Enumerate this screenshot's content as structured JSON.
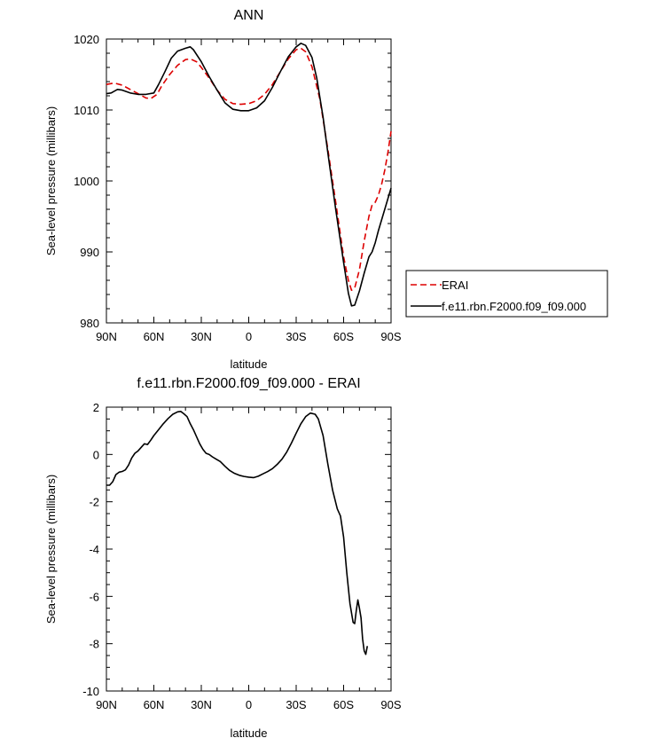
{
  "chart_data": [
    {
      "type": "line",
      "title": "ANN",
      "xlabel": "latitude",
      "ylabel": "Sea-level pressure (millibars)",
      "xlim": [
        90,
        -90
      ],
      "ylim": [
        980,
        1020
      ],
      "xticks": [
        90,
        60,
        30,
        0,
        -30,
        -60,
        -90
      ],
      "xticklabels": [
        "90N",
        "60N",
        "30N",
        "0",
        "30S",
        "60S",
        "90S"
      ],
      "yticks": [
        980,
        990,
        1000,
        1010,
        1020
      ],
      "yticklabels": [
        "980",
        "990",
        "1000",
        "1010",
        "1020"
      ],
      "legend_position": "right",
      "series": [
        {
          "name": "ERAI",
          "color": "#dd0000",
          "dashed": true,
          "points": [
            [
              90,
              1013.6
            ],
            [
              85,
              1013.8
            ],
            [
              80,
              1013.5
            ],
            [
              75,
              1012.9
            ],
            [
              70,
              1012.3
            ],
            [
              65,
              1011.7
            ],
            [
              62,
              1011.6
            ],
            [
              58,
              1012.2
            ],
            [
              55,
              1013.4
            ],
            [
              50,
              1015.0
            ],
            [
              45,
              1016.3
            ],
            [
              40,
              1017.1
            ],
            [
              37,
              1017.2
            ],
            [
              33,
              1016.8
            ],
            [
              30,
              1016.0
            ],
            [
              25,
              1014.5
            ],
            [
              20,
              1012.8
            ],
            [
              15,
              1011.5
            ],
            [
              10,
              1010.9
            ],
            [
              5,
              1010.8
            ],
            [
              0,
              1010.9
            ],
            [
              -5,
              1011.3
            ],
            [
              -10,
              1012.2
            ],
            [
              -15,
              1013.6
            ],
            [
              -20,
              1015.4
            ],
            [
              -25,
              1017.2
            ],
            [
              -30,
              1018.5
            ],
            [
              -33,
              1018.7
            ],
            [
              -36,
              1018.2
            ],
            [
              -40,
              1016.1
            ],
            [
              -45,
              1011.5
            ],
            [
              -50,
              1004.5
            ],
            [
              -55,
              997.0
            ],
            [
              -60,
              989.3
            ],
            [
              -63,
              986.0
            ],
            [
              -65,
              984.6
            ],
            [
              -67,
              984.9
            ],
            [
              -70,
              987.5
            ],
            [
              -73,
              991.5
            ],
            [
              -76,
              995.0
            ],
            [
              -78,
              996.6
            ],
            [
              -80,
              997.0
            ],
            [
              -82,
              998.0
            ],
            [
              -84,
              999.5
            ],
            [
              -86,
              1001.5
            ],
            [
              -88,
              1004.0
            ],
            [
              -90,
              1007.0
            ]
          ]
        },
        {
          "name": "f.e11.rbn.F2000.f09_f09.000",
          "color": "#000000",
          "dashed": false,
          "points": [
            [
              90,
              1012.3
            ],
            [
              87,
              1012.4
            ],
            [
              83,
              1012.9
            ],
            [
              80,
              1012.8
            ],
            [
              75,
              1012.4
            ],
            [
              70,
              1012.2
            ],
            [
              65,
              1012.2
            ],
            [
              60,
              1012.4
            ],
            [
              57,
              1013.6
            ],
            [
              53,
              1015.4
            ],
            [
              49,
              1017.3
            ],
            [
              45,
              1018.3
            ],
            [
              40,
              1018.7
            ],
            [
              37,
              1018.9
            ],
            [
              35,
              1018.5
            ],
            [
              30,
              1016.8
            ],
            [
              25,
              1014.7
            ],
            [
              20,
              1012.8
            ],
            [
              15,
              1011.0
            ],
            [
              10,
              1010.1
            ],
            [
              5,
              1009.9
            ],
            [
              0,
              1009.9
            ],
            [
              -5,
              1010.3
            ],
            [
              -10,
              1011.3
            ],
            [
              -15,
              1013.2
            ],
            [
              -20,
              1015.4
            ],
            [
              -25,
              1017.5
            ],
            [
              -30,
              1018.9
            ],
            [
              -33,
              1019.4
            ],
            [
              -36,
              1019.1
            ],
            [
              -40,
              1017.4
            ],
            [
              -43,
              1014.5
            ],
            [
              -47,
              1009.0
            ],
            [
              -50,
              1004.0
            ],
            [
              -55,
              996.0
            ],
            [
              -60,
              988.5
            ],
            [
              -63,
              984.2
            ],
            [
              -65,
              982.4
            ],
            [
              -67,
              982.5
            ],
            [
              -70,
              984.5
            ],
            [
              -73,
              987.0
            ],
            [
              -76,
              989.3
            ],
            [
              -78,
              990.0
            ],
            [
              -80,
              991.3
            ],
            [
              -82,
              993.0
            ],
            [
              -84,
              994.5
            ],
            [
              -86,
              996.0
            ],
            [
              -88,
              997.5
            ],
            [
              -90,
              999.0
            ]
          ]
        }
      ]
    },
    {
      "type": "line",
      "title": "f.e11.rbn.F2000.f09_f09.000 - ERAI",
      "xlabel": "latitude",
      "ylabel": "Sea-level pressure (millibars)",
      "xlim": [
        90,
        -90
      ],
      "ylim": [
        -10,
        2
      ],
      "xticks": [
        90,
        60,
        30,
        0,
        -30,
        -60,
        -90
      ],
      "xticklabels": [
        "90N",
        "60N",
        "30N",
        "0",
        "30S",
        "60S",
        "90S"
      ],
      "yticks": [
        -10,
        -8,
        -6,
        -4,
        -2,
        0,
        2
      ],
      "yticklabels": [
        "-10",
        "-8",
        "-6",
        "-4",
        "-2",
        "0",
        "2"
      ],
      "series": [
        {
          "color": "#000000",
          "dashed": false,
          "points": [
            [
              90,
              -1.3
            ],
            [
              88,
              -1.3
            ],
            [
              86,
              -1.15
            ],
            [
              84,
              -0.85
            ],
            [
              82,
              -0.75
            ],
            [
              80,
              -0.72
            ],
            [
              78,
              -0.65
            ],
            [
              76,
              -0.45
            ],
            [
              74,
              -0.15
            ],
            [
              72,
              0.05
            ],
            [
              70,
              0.15
            ],
            [
              68,
              0.3
            ],
            [
              66,
              0.45
            ],
            [
              64,
              0.42
            ],
            [
              62,
              0.6
            ],
            [
              60,
              0.8
            ],
            [
              57,
              1.05
            ],
            [
              54,
              1.3
            ],
            [
              51,
              1.52
            ],
            [
              48,
              1.7
            ],
            [
              45,
              1.8
            ],
            [
              43,
              1.82
            ],
            [
              41,
              1.72
            ],
            [
              39,
              1.6
            ],
            [
              37,
              1.3
            ],
            [
              35,
              1.05
            ],
            [
              33,
              0.75
            ],
            [
              31,
              0.45
            ],
            [
              29,
              0.22
            ],
            [
              27,
              0.05
            ],
            [
              25,
              0.0
            ],
            [
              23,
              -0.1
            ],
            [
              21,
              -0.18
            ],
            [
              18,
              -0.3
            ],
            [
              15,
              -0.5
            ],
            [
              12,
              -0.68
            ],
            [
              9,
              -0.8
            ],
            [
              6,
              -0.88
            ],
            [
              3,
              -0.93
            ],
            [
              0,
              -0.96
            ],
            [
              -3,
              -0.98
            ],
            [
              -6,
              -0.92
            ],
            [
              -9,
              -0.82
            ],
            [
              -12,
              -0.72
            ],
            [
              -15,
              -0.6
            ],
            [
              -18,
              -0.42
            ],
            [
              -21,
              -0.2
            ],
            [
              -24,
              0.1
            ],
            [
              -27,
              0.48
            ],
            [
              -30,
              0.9
            ],
            [
              -33,
              1.3
            ],
            [
              -36,
              1.6
            ],
            [
              -39,
              1.75
            ],
            [
              -42,
              1.7
            ],
            [
              -44,
              1.5
            ],
            [
              -47,
              0.8
            ],
            [
              -50,
              -0.4
            ],
            [
              -53,
              -1.5
            ],
            [
              -56,
              -2.3
            ],
            [
              -58,
              -2.6
            ],
            [
              -60,
              -3.5
            ],
            [
              -62,
              -5.0
            ],
            [
              -64,
              -6.3
            ],
            [
              -66,
              -7.1
            ],
            [
              -67,
              -7.15
            ],
            [
              -68,
              -6.6
            ],
            [
              -69,
              -6.15
            ],
            [
              -70,
              -6.5
            ],
            [
              -71,
              -6.9
            ],
            [
              -72,
              -7.8
            ],
            [
              -73,
              -8.3
            ],
            [
              -74,
              -8.45
            ],
            [
              -75,
              -8.1
            ]
          ]
        }
      ]
    }
  ],
  "legend": {
    "items": [
      "ERAI",
      "f.e11.rbn.F2000.f09_f09.000"
    ]
  }
}
